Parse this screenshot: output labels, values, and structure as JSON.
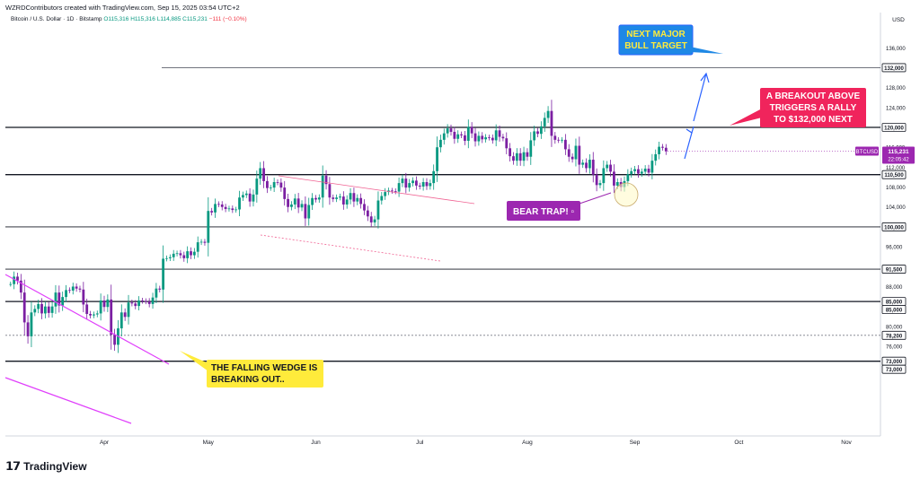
{
  "header": {
    "attribution": "WZRDContributors created with TradingView.com, Sep 15, 2025 03:54 UTC+2"
  },
  "legend": {
    "symbol": "Bitcoin / U.S. Dollar · 1D · Bitstamp",
    "ohlc": "O115,316  H115,316  L114,885  C115,231",
    "change": "−111 (−0.10%)"
  },
  "price_scale": {
    "currency": "USD",
    "current_symbol": "BTCUSD",
    "current_price": "115,231",
    "countdown": "22:05:42"
  },
  "annotations": {
    "target_box": "NEXT MAJOR\nBULL TARGET",
    "breakout_box": "A BREAKOUT ABOVE\nTRIGGERS A RALLY\nTO  $132,000 NEXT",
    "bear_trap": "BEAR TRAP! ▫",
    "wedge_box": "THE FALLING WEDGE IS\nBREAKING OUT.."
  },
  "branding": {
    "logo_text": "TradingView"
  },
  "colors": {
    "up": "#089981",
    "down": "#7b1fa2",
    "wedge": "#e040fb",
    "level": "#131722",
    "blue": "#2962ff",
    "red": "#f0245c",
    "yellow": "#ffeb3b",
    "purple": "#9c27b0"
  },
  "chart_data": {
    "type": "candlestick",
    "ylim": [
      70000,
      138000
    ],
    "yticks": [
      76000,
      80000,
      88000,
      96000,
      104000,
      108000,
      112000,
      116000,
      120000,
      124000,
      128000,
      136000
    ],
    "ytick_labels": [
      "76,000",
      "80,000",
      "88,000",
      "96,000",
      "104,000",
      "108,000",
      "112,000",
      "116,000",
      "120,000",
      "124,000",
      "128,000",
      "136,000"
    ],
    "xticks": [
      "Apr",
      "May",
      "Jun",
      "Jul",
      "Aug",
      "Sep",
      "Oct",
      "Nov"
    ],
    "levels": [
      {
        "value": 132000,
        "label": "132,000"
      },
      {
        "value": 120000,
        "label": "120,000"
      },
      {
        "value": 110500,
        "label": "110,500"
      },
      {
        "value": 100000,
        "label": "100,000"
      },
      {
        "value": 91500,
        "label": "91,500"
      },
      {
        "value": 85000,
        "label": "85,000"
      },
      {
        "value": 85000,
        "label": "85,000"
      },
      {
        "value": 78200,
        "label": "78,200"
      },
      {
        "value": 73000,
        "label": "73,000"
      },
      {
        "value": 73000,
        "label": "73,000"
      }
    ],
    "series": [
      {
        "start_date": "2025-03-05",
        "closes": [
          88500,
          90000,
          89200,
          86800,
          80800,
          78000,
          82800,
          83500,
          84500,
          82600,
          84000,
          82700,
          84000,
          86800,
          84200,
          85900,
          87300,
          87200,
          88000,
          87600,
          87400,
          84400,
          82500,
          82200,
          82400,
          82600,
          85200,
          83900,
          85400,
          78300,
          76300,
          79600,
          82800,
          81900,
          84800,
          84600,
          84100,
          85200,
          85100,
          85000,
          84500,
          85800,
          87600,
          87400,
          93600,
          93700,
          93900,
          94600,
          94700,
          94300,
          93700,
          95100,
          94300,
          95000,
          96900,
          97000,
          96800,
          103200,
          102900,
          104600,
          104500,
          104000,
          103600,
          103700,
          103400,
          103500,
          105900,
          106400,
          106700,
          105100,
          106500,
          109700,
          111800,
          109200,
          107800,
          107900,
          109000,
          108900,
          107900,
          105600,
          104000,
          104500,
          105700,
          103900,
          104600,
          101700,
          104400,
          105800,
          105500,
          105900,
          110300,
          108600,
          105900,
          105600,
          105900,
          106100,
          104500,
          105500,
          106800,
          105100,
          105800,
          104600,
          103300,
          102100,
          100900,
          101500,
          105300,
          106200,
          107000,
          107300,
          107200,
          107100,
          108800,
          109700,
          107900,
          108800,
          109300,
          108300,
          108100,
          109000,
          108200,
          108800,
          111200,
          116000,
          117500,
          118800,
          119800,
          119100,
          117700,
          118600,
          118400,
          117300,
          120100,
          118800,
          117200,
          118300,
          117600,
          118000,
          117900,
          117400,
          119400,
          118100,
          117800,
          115800,
          114200,
          113300,
          114800,
          113300,
          115000,
          114100,
          117400,
          119200,
          118700,
          120200,
          121900,
          123300,
          118300,
          117500,
          117400,
          117500,
          115600,
          114100,
          113600,
          116300,
          112500,
          112900,
          111800,
          113500,
          110500,
          108400,
          108800,
          111800,
          112500,
          111100,
          108300,
          109000,
          108000,
          109200,
          110600,
          111200,
          111600,
          110700,
          111100,
          111700,
          110900,
          113300,
          114600,
          116100,
          115900,
          115200
        ]
      }
    ]
  }
}
